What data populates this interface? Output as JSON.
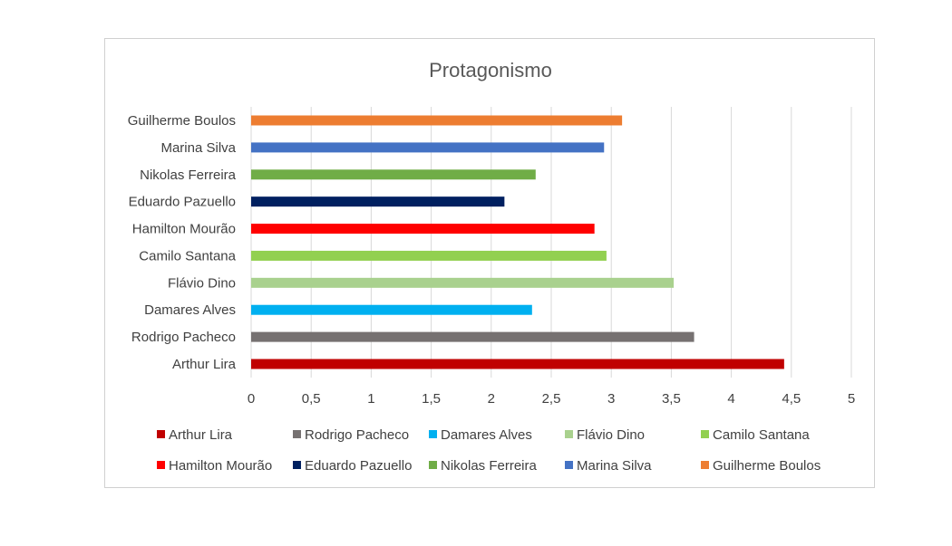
{
  "chart_data": {
    "type": "bar",
    "orientation": "horizontal",
    "title": "Protagonismo",
    "xlabel": "",
    "ylabel": "",
    "xlim": [
      0,
      5
    ],
    "x_ticks": [
      "0",
      "0,5",
      "1",
      "1,5",
      "2",
      "2,5",
      "3",
      "3,5",
      "4",
      "4,5",
      "5"
    ],
    "grid": true,
    "legend_position": "bottom",
    "categories": [
      "Arthur Lira",
      "Rodrigo Pacheco",
      "Damares  Alves",
      "Flávio Dino",
      "Camilo Santana",
      "Hamilton Mourão",
      "Eduardo Pazuello",
      "Nikolas Ferreira",
      "Marina Silva",
      "Guilherme Boulos"
    ],
    "values": [
      4.44,
      3.69,
      2.34,
      3.52,
      2.96,
      2.86,
      2.11,
      2.37,
      2.94,
      3.09
    ],
    "colors": [
      "#c00000",
      "#767171",
      "#00b0f0",
      "#a9d18e",
      "#92d050",
      "#ff0000",
      "#002060",
      "#70ad47",
      "#4472c4",
      "#ed7d31"
    ]
  }
}
